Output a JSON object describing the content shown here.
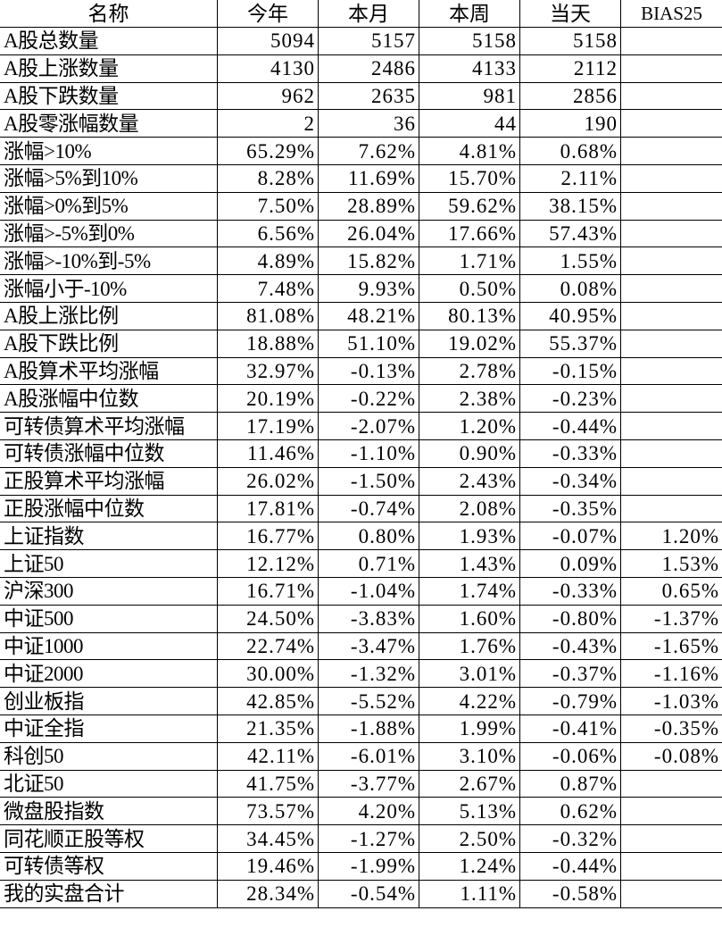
{
  "headers": [
    "名称",
    "今年",
    "本月",
    "本周",
    "当天",
    "BIAS25"
  ],
  "rows": [
    {
      "name": "A股总数量",
      "values": [
        "5094",
        "5157",
        "5158",
        "5158",
        ""
      ]
    },
    {
      "name": "A股上涨数量",
      "values": [
        "4130",
        "2486",
        "4133",
        "2112",
        ""
      ]
    },
    {
      "name": "A股下跌数量",
      "values": [
        "962",
        "2635",
        "981",
        "2856",
        ""
      ]
    },
    {
      "name": "A股零涨幅数量",
      "values": [
        "2",
        "36",
        "44",
        "190",
        ""
      ]
    },
    {
      "name": "涨幅>10%",
      "values": [
        "65.29%",
        "7.62%",
        "4.81%",
        "0.68%",
        ""
      ]
    },
    {
      "name": "涨幅>5%到10%",
      "values": [
        "8.28%",
        "11.69%",
        "15.70%",
        "2.11%",
        ""
      ]
    },
    {
      "name": "涨幅>0%到5%",
      "values": [
        "7.50%",
        "28.89%",
        "59.62%",
        "38.15%",
        ""
      ]
    },
    {
      "name": "涨幅>-5%到0%",
      "values": [
        "6.56%",
        "26.04%",
        "17.66%",
        "57.43%",
        ""
      ]
    },
    {
      "name": "涨幅>-10%到-5%",
      "values": [
        "4.89%",
        "15.82%",
        "1.71%",
        "1.55%",
        ""
      ]
    },
    {
      "name": "涨幅小于-10%",
      "values": [
        "7.48%",
        "9.93%",
        "0.50%",
        "0.08%",
        ""
      ]
    },
    {
      "name": "A股上涨比例",
      "values": [
        "81.08%",
        "48.21%",
        "80.13%",
        "40.95%",
        ""
      ]
    },
    {
      "name": "A股下跌比例",
      "values": [
        "18.88%",
        "51.10%",
        "19.02%",
        "55.37%",
        ""
      ]
    },
    {
      "name": "A股算术平均涨幅",
      "values": [
        "32.97%",
        "-0.13%",
        "2.78%",
        "-0.15%",
        ""
      ]
    },
    {
      "name": "A股涨幅中位数",
      "values": [
        "20.19%",
        "-0.22%",
        "2.38%",
        "-0.23%",
        ""
      ]
    },
    {
      "name": "可转债算术平均涨幅",
      "values": [
        "17.19%",
        "-2.07%",
        "1.20%",
        "-0.44%",
        ""
      ]
    },
    {
      "name": "可转债涨幅中位数",
      "values": [
        "11.46%",
        "-1.10%",
        "0.90%",
        "-0.33%",
        ""
      ]
    },
    {
      "name": "正股算术平均涨幅",
      "values": [
        "26.02%",
        "-1.50%",
        "2.43%",
        "-0.34%",
        ""
      ]
    },
    {
      "name": "正股涨幅中位数",
      "values": [
        "17.81%",
        "-0.74%",
        "2.08%",
        "-0.35%",
        ""
      ]
    },
    {
      "name": "上证指数",
      "values": [
        "16.77%",
        "0.80%",
        "1.93%",
        "-0.07%",
        "1.20%"
      ]
    },
    {
      "name": "上证50",
      "values": [
        "12.12%",
        "0.71%",
        "1.43%",
        "0.09%",
        "1.53%"
      ]
    },
    {
      "name": "沪深300",
      "values": [
        "16.71%",
        "-1.04%",
        "1.74%",
        "-0.33%",
        "0.65%"
      ]
    },
    {
      "name": "中证500",
      "values": [
        "24.50%",
        "-3.83%",
        "1.60%",
        "-0.80%",
        "-1.37%"
      ]
    },
    {
      "name": "中证1000",
      "values": [
        "22.74%",
        "-3.47%",
        "1.76%",
        "-0.43%",
        "-1.65%"
      ]
    },
    {
      "name": "中证2000",
      "values": [
        "30.00%",
        "-1.32%",
        "3.01%",
        "-0.37%",
        "-1.16%"
      ]
    },
    {
      "name": "创业板指",
      "values": [
        "42.85%",
        "-5.52%",
        "4.22%",
        "-0.79%",
        "-1.03%"
      ]
    },
    {
      "name": "中证全指",
      "values": [
        "21.35%",
        "-1.88%",
        "1.99%",
        "-0.41%",
        "-0.35%"
      ]
    },
    {
      "name": "科创50",
      "values": [
        "42.11%",
        "-6.01%",
        "3.10%",
        "-0.06%",
        "-0.08%"
      ]
    },
    {
      "name": "北证50",
      "values": [
        "41.75%",
        "-3.77%",
        "2.67%",
        "0.87%",
        ""
      ]
    },
    {
      "name": "微盘股指数",
      "values": [
        "73.57%",
        "4.20%",
        "5.13%",
        "0.62%",
        ""
      ]
    },
    {
      "name": "同花顺正股等权",
      "values": [
        "34.45%",
        "-1.27%",
        "2.50%",
        "-0.32%",
        ""
      ]
    },
    {
      "name": "可转债等权",
      "values": [
        "19.46%",
        "-1.99%",
        "1.24%",
        "-0.44%",
        ""
      ]
    },
    {
      "name": "我的实盘合计",
      "values": [
        "28.34%",
        "-0.54%",
        "1.11%",
        "-0.58%",
        ""
      ]
    }
  ]
}
